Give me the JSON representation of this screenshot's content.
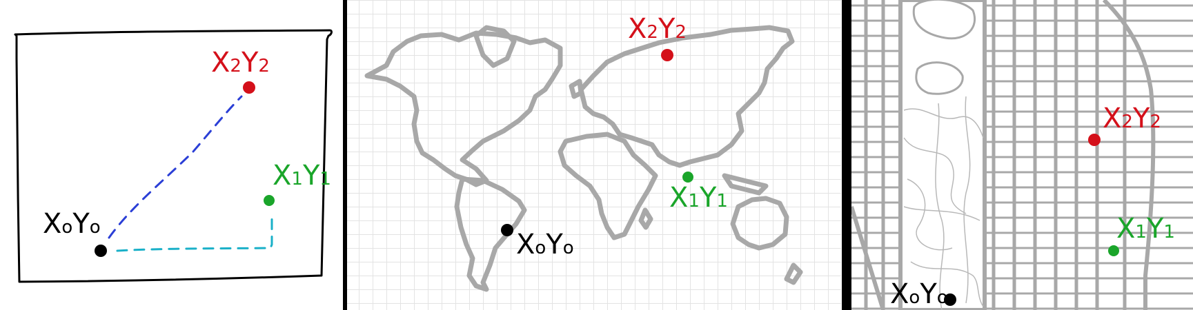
{
  "colors": {
    "black": "#000000",
    "red": "#d4101a",
    "green": "#1aa52a",
    "blue_path": "#2b3fd6",
    "cyan_path": "#1ab0c8",
    "outline_gray": "#a8a8a8",
    "grid_gray": "#e3e3e3",
    "divider": "#000000"
  },
  "panels": [
    {
      "name": "paper-sketch",
      "points": {
        "p0": {
          "main": "X",
          "sub1": "o",
          "main2": "Y",
          "sub2": "o"
        },
        "p1": {
          "main": "X",
          "sub1": "1",
          "main2": "Y",
          "sub2": "1"
        },
        "p2": {
          "main": "X",
          "sub1": "2",
          "main2": "Y",
          "sub2": "2"
        }
      }
    },
    {
      "name": "world-map",
      "points": {
        "p0": {
          "main": "X",
          "sub1": "o",
          "main2": "Y",
          "sub2": "o"
        },
        "p1": {
          "main": "X",
          "sub1": "1",
          "main2": "Y",
          "sub2": "1"
        },
        "p2": {
          "main": "X",
          "sub1": "2",
          "main2": "Y",
          "sub2": "2"
        }
      }
    },
    {
      "name": "city-map",
      "points": {
        "p0": {
          "main": "X",
          "sub1": "o",
          "main2": "Y",
          "sub2": "o"
        },
        "p1": {
          "main": "X",
          "sub1": "1",
          "main2": "Y",
          "sub2": "1"
        },
        "p2": {
          "main": "X",
          "sub1": "2",
          "main2": "Y",
          "sub2": "2"
        }
      }
    }
  ]
}
